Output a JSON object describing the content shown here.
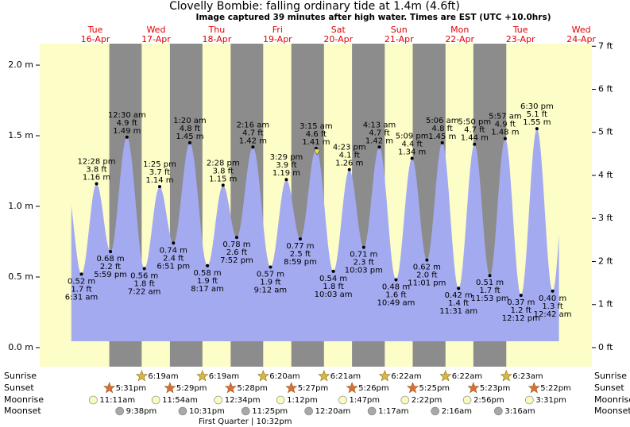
{
  "chart_data": {
    "type": "area",
    "title": "Clovelly Bombie: falling  ordinary tide at 1.4m (4.6ft)",
    "subtitle": "Image captured 39 minutes after high water. Times are EST (UTC +10.0hrs)",
    "color": "#a3aaf0",
    "x": [
      "6:31 am",
      "12:28 pm",
      "5:59 pm",
      "12:30 am",
      "7:22 am",
      "1:25 pm",
      "6:51 pm",
      "1:20 am",
      "8:17 am",
      "2:28 pm",
      "7:52 pm",
      "2:16 am",
      "9:12 am",
      "3:29 pm",
      "8:59 pm",
      "3:15 am",
      "10:03 am",
      "4:23 pm",
      "10:03 pm",
      "4:13 am",
      "10:49 am",
      "5:09 pm",
      "11:01 pm",
      "5:06 am",
      "11:31 am",
      "5:50 pm",
      "11:53 pm",
      "5:57 am",
      "12:12 pm",
      "6:30 pm",
      "12:42 am"
    ],
    "values": [
      0.52,
      1.16,
      0.68,
      1.49,
      0.56,
      1.14,
      0.74,
      1.45,
      0.58,
      1.15,
      0.78,
      1.42,
      0.57,
      1.19,
      0.77,
      1.41,
      0.54,
      1.26,
      0.71,
      1.42,
      0.48,
      1.34,
      0.62,
      1.45,
      0.42,
      1.44,
      0.51,
      1.48,
      0.37,
      1.55,
      0.4
    ],
    "value_labels": [
      "0.52 m",
      "1.16 m",
      "0.68 m",
      "1.49 m",
      "0.56 m",
      "1.14 m",
      "0.74 m",
      "1.45 m",
      "0.58 m",
      "1.15 m",
      "0.78 m",
      "1.42 m",
      "0.57 m",
      "1.19 m",
      "0.77 m",
      "1.41 m",
      "0.54 m",
      "1.26 m",
      "0.71 m",
      "1.42 m",
      "0.48 m",
      "1.34 m",
      "0.62 m",
      "1.45 m",
      "0.42 m",
      "1.44 m",
      "0.51 m",
      "1.48 m",
      "0.37 m",
      "1.55 m",
      "0.40 m"
    ],
    "ft_labels": [
      "1.7 ft",
      "3.8 ft",
      "2.2 ft",
      "4.9 ft",
      "1.8 ft",
      "3.7 ft",
      "2.4 ft",
      "4.8 ft",
      "1.9 ft",
      "3.8 ft",
      "2.6 ft",
      "4.7 ft",
      "1.9 ft",
      "3.9 ft",
      "2.5 ft",
      "4.6 ft",
      "1.8 ft",
      "4.1 ft",
      "2.3 ft",
      "4.7 ft",
      "1.6 ft",
      "4.4 ft",
      "2.0 ft",
      "4.8 ft",
      "1.4 ft",
      "4.7 ft",
      "1.7 ft",
      "4.9 ft",
      "1.2 ft",
      "5.1 ft",
      "1.3 ft"
    ],
    "ylim": [
      -0.135,
      2.152
    ],
    "yticks": [
      {
        "value": 0,
        "label": "0.0 m"
      },
      {
        "value": 0.5,
        "label": "0.5 m"
      },
      {
        "value": 1,
        "label": "1.0 m"
      },
      {
        "value": 1.5,
        "label": "1.5 m"
      },
      {
        "value": 2,
        "label": "2.0 m"
      }
    ],
    "y2lim": [
      -0.443,
      7.06
    ],
    "y2ticks": [
      {
        "value": 0,
        "label": "0 ft"
      },
      {
        "value": 1,
        "label": "1 ft"
      },
      {
        "value": 2,
        "label": "2 ft"
      },
      {
        "value": 3,
        "label": "3 ft"
      },
      {
        "value": 4,
        "label": "4 ft"
      },
      {
        "value": 5,
        "label": "5 ft"
      },
      {
        "value": 6,
        "label": "6 ft"
      },
      {
        "value": 7,
        "label": "7 ft"
      }
    ],
    "row_labels": [
      "Sunrise",
      "Sunset",
      "Moonrise",
      "Moonset"
    ],
    "days": [
      {
        "name": "Tue",
        "date": "16-Apr",
        "sunrise": null,
        "sunset": "5:31pm",
        "moonrise": "11:11am",
        "moonset": "9:38pm"
      },
      {
        "name": "Wed",
        "date": "17-Apr",
        "sunrise": "6:19am",
        "sunset": "5:29pm",
        "moonrise": "11:54am",
        "moonset": "10:31pm"
      },
      {
        "name": "Thu",
        "date": "18-Apr",
        "sunrise": "6:19am",
        "sunset": "5:28pm",
        "moonrise": "12:34pm",
        "moonset": "11:25pm"
      },
      {
        "name": "Fri",
        "date": "19-Apr",
        "sunrise": "6:20am",
        "sunset": "5:27pm",
        "moonrise": "1:12pm",
        "moonset": null
      },
      {
        "name": "Sat",
        "date": "20-Apr",
        "sunrise": "6:21am",
        "sunset": "5:26pm",
        "moonrise": "1:47pm",
        "moonset": "12:20am"
      },
      {
        "name": "Sun",
        "date": "21-Apr",
        "sunrise": "6:22am",
        "sunset": "5:25pm",
        "moonrise": "2:22pm",
        "moonset": "1:17am"
      },
      {
        "name": "Mon",
        "date": "22-Apr",
        "sunrise": "6:22am",
        "sunset": "5:23pm",
        "moonrise": "2:56pm",
        "moonset": "2:16am"
      },
      {
        "name": "Tue",
        "date": "23-Apr",
        "sunrise": "6:23am",
        "sunset": "5:22pm",
        "moonrise": "3:31pm",
        "moonset": "3:16am"
      },
      {
        "name": "Wed",
        "date": "24-Apr",
        "sunrise": null,
        "sunset": null,
        "moonrise": null,
        "moonset": null
      }
    ],
    "moon_phase": "First Quarter | 10:32pm"
  }
}
